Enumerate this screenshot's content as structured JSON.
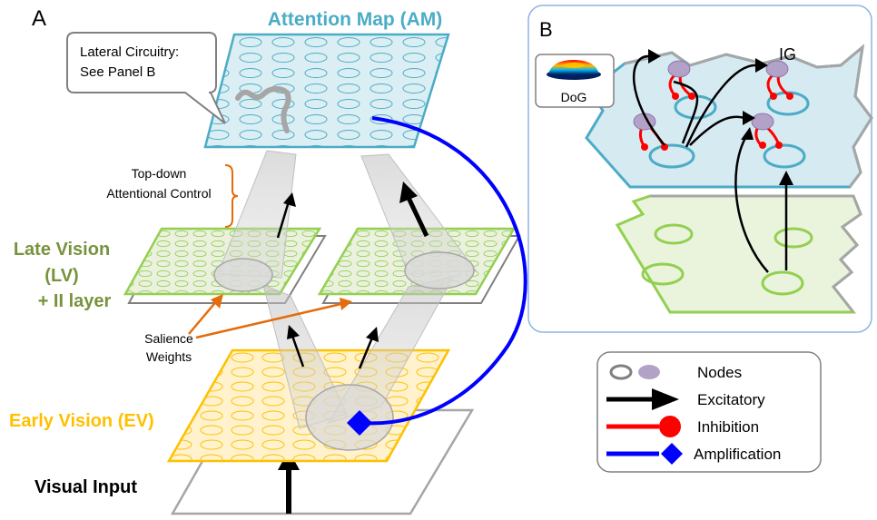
{
  "panel_a": {
    "letter": "A",
    "attention_map_title": "Attention Map (AM)",
    "callout_line1": "Lateral Circuitry:",
    "callout_line2": "See Panel B",
    "topdown_line1": "Top-down",
    "topdown_line2": "Attentional Control",
    "late_vision_line1": "Late Vision",
    "late_vision_line2": "(LV)",
    "late_vision_line3": "+ II layer",
    "salience_line1": "Salience",
    "salience_line2": "Weights",
    "early_vision_title": "Early Vision (EV)",
    "visual_input_title": "Visual Input"
  },
  "panel_b": {
    "letter": "B",
    "dog_label": "DoG",
    "ig_label": "IG"
  },
  "legend": {
    "nodes": "Nodes",
    "excitatory": "Excitatory",
    "inhibition": "Inhibition",
    "amplification": "Amplification"
  },
  "colors": {
    "attention_map": "#4bacc6",
    "late_vision": "#77933c",
    "early_vision": "#ffc000",
    "amplification": "#0000ff",
    "inhibition": "#ff0000",
    "excitatory": "#000000",
    "node": "#b3a2c7",
    "topdown_brace": "#e46c0a"
  }
}
